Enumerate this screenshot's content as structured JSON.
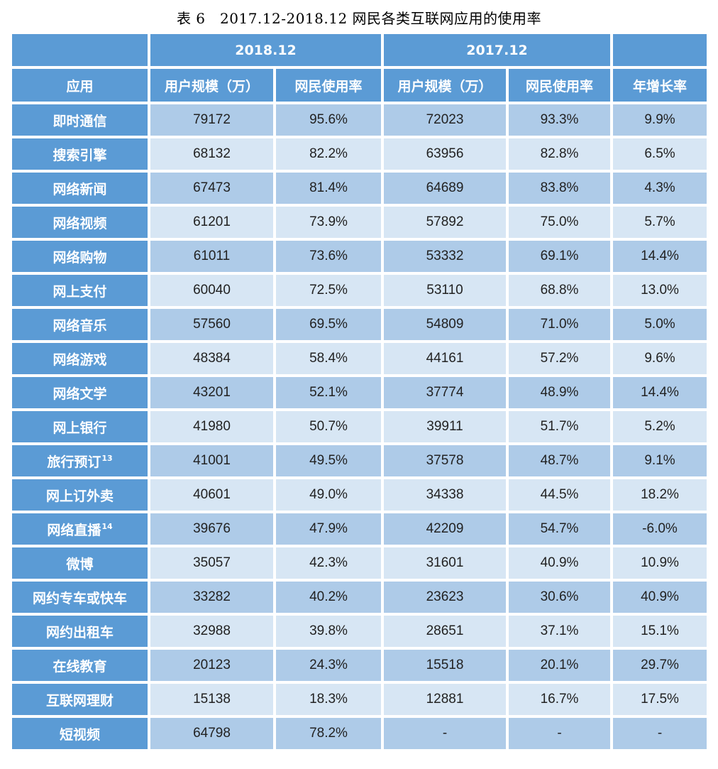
{
  "caption": "表 6　2017.12-2018.12 网民各类互联网应用的使用率",
  "header": {
    "period_2018": "2018.12",
    "period_2017": "2017.12",
    "col_app": "应用",
    "col_users_2018": "用户规模（万）",
    "col_rate_2018": "网民使用率",
    "col_users_2017": "用户规模（万）",
    "col_rate_2017": "网民使用率",
    "col_growth": "年增长率"
  },
  "rows": [
    {
      "app": "即时通信",
      "note": "",
      "u18": "79172",
      "r18": "95.6%",
      "u17": "72023",
      "r17": "93.3%",
      "g": "9.9%"
    },
    {
      "app": "搜索引擎",
      "note": "",
      "u18": "68132",
      "r18": "82.2%",
      "u17": "63956",
      "r17": "82.8%",
      "g": "6.5%"
    },
    {
      "app": "网络新闻",
      "note": "",
      "u18": "67473",
      "r18": "81.4%",
      "u17": "64689",
      "r17": "83.8%",
      "g": "4.3%"
    },
    {
      "app": "网络视频",
      "note": "",
      "u18": "61201",
      "r18": "73.9%",
      "u17": "57892",
      "r17": "75.0%",
      "g": "5.7%"
    },
    {
      "app": "网络购物",
      "note": "",
      "u18": "61011",
      "r18": "73.6%",
      "u17": "53332",
      "r17": "69.1%",
      "g": "14.4%"
    },
    {
      "app": "网上支付",
      "note": "",
      "u18": "60040",
      "r18": "72.5%",
      "u17": "53110",
      "r17": "68.8%",
      "g": "13.0%"
    },
    {
      "app": "网络音乐",
      "note": "",
      "u18": "57560",
      "r18": "69.5%",
      "u17": "54809",
      "r17": "71.0%",
      "g": "5.0%"
    },
    {
      "app": "网络游戏",
      "note": "",
      "u18": "48384",
      "r18": "58.4%",
      "u17": "44161",
      "r17": "57.2%",
      "g": "9.6%"
    },
    {
      "app": "网络文学",
      "note": "",
      "u18": "43201",
      "r18": "52.1%",
      "u17": "37774",
      "r17": "48.9%",
      "g": "14.4%"
    },
    {
      "app": "网上银行",
      "note": "",
      "u18": "41980",
      "r18": "50.7%",
      "u17": "39911",
      "r17": "51.7%",
      "g": "5.2%"
    },
    {
      "app": "旅行预订",
      "note": "13",
      "u18": "41001",
      "r18": "49.5%",
      "u17": "37578",
      "r17": "48.7%",
      "g": "9.1%"
    },
    {
      "app": "网上订外卖",
      "note": "",
      "u18": "40601",
      "r18": "49.0%",
      "u17": "34338",
      "r17": "44.5%",
      "g": "18.2%"
    },
    {
      "app": "网络直播",
      "note": "14",
      "u18": "39676",
      "r18": "47.9%",
      "u17": "42209",
      "r17": "54.7%",
      "g": "-6.0%"
    },
    {
      "app": "微博",
      "note": "",
      "u18": "35057",
      "r18": "42.3%",
      "u17": "31601",
      "r17": "40.9%",
      "g": "10.9%"
    },
    {
      "app": "网约专车或快车",
      "note": "",
      "u18": "33282",
      "r18": "40.2%",
      "u17": "23623",
      "r17": "30.6%",
      "g": "40.9%"
    },
    {
      "app": "网约出租车",
      "note": "",
      "u18": "32988",
      "r18": "39.8%",
      "u17": "28651",
      "r17": "37.1%",
      "g": "15.1%"
    },
    {
      "app": "在线教育",
      "note": "",
      "u18": "20123",
      "r18": "24.3%",
      "u17": "15518",
      "r17": "20.1%",
      "g": "29.7%"
    },
    {
      "app": "互联网理财",
      "note": "",
      "u18": "15138",
      "r18": "18.3%",
      "u17": "12881",
      "r17": "16.7%",
      "g": "17.5%"
    },
    {
      "app": "短视频",
      "note": "",
      "u18": "64798",
      "r18": "78.2%",
      "u17": "-",
      "r17": "-",
      "g": "-"
    }
  ]
}
